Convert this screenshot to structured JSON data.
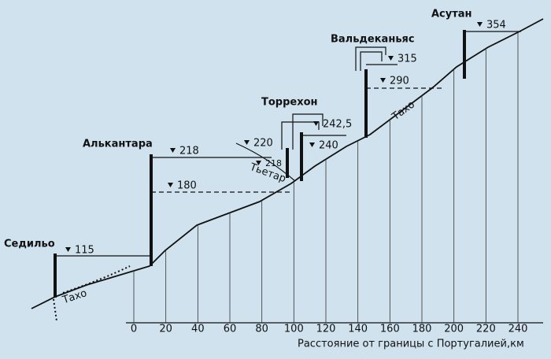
{
  "axis": {
    "ticks": [
      0,
      20,
      40,
      60,
      80,
      100,
      120,
      140,
      160,
      180,
      200,
      220,
      240
    ],
    "label": "Расстояние от границы с Португалией,км"
  },
  "rivers": {
    "main": "Тахо",
    "tributary": "Тьетар"
  },
  "dams": [
    {
      "name": "Седильо",
      "levels": [
        "115"
      ]
    },
    {
      "name": "Алькантара",
      "levels": [
        "218",
        "180"
      ]
    },
    {
      "name": "Торрехон",
      "levels": [
        "220",
        "218",
        "242,5",
        "240"
      ]
    },
    {
      "name": "Вальдеканьяс",
      "levels": [
        "315",
        "290"
      ]
    },
    {
      "name": "Асутан",
      "levels": [
        "354"
      ]
    }
  ]
}
